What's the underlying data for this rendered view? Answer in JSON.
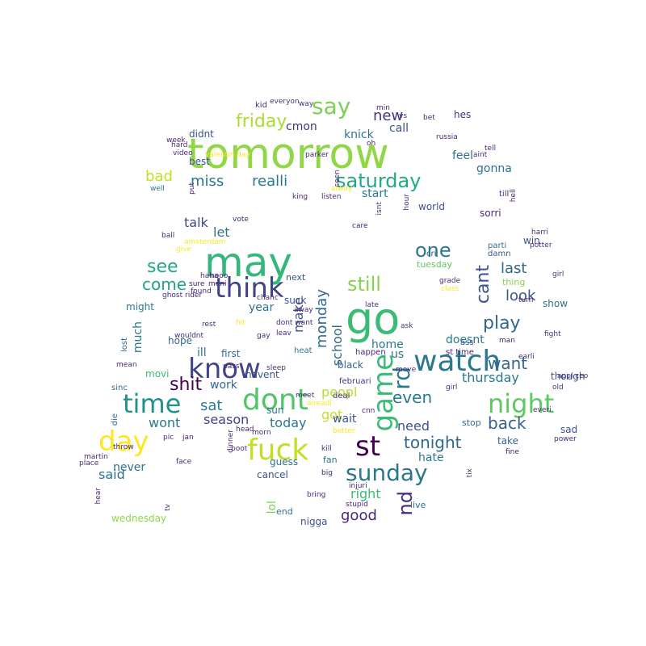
{
  "words": [
    {
      "text": "tomorrow",
      "color": "#8fd744"
    },
    {
      "text": "go",
      "color": "#3bbb75"
    },
    {
      "text": "may",
      "color": "#35b779"
    },
    {
      "text": "know",
      "color": "#414487"
    },
    {
      "text": "watch",
      "color": "#2a788e"
    },
    {
      "text": "dont",
      "color": "#52c569"
    },
    {
      "text": "think",
      "color": "#414487"
    },
    {
      "text": "fuck",
      "color": "#c2df23"
    },
    {
      "text": "st",
      "color": "#440154"
    },
    {
      "text": "night",
      "color": "#5ec962"
    },
    {
      "text": "game",
      "color": "#3bbb75"
    },
    {
      "text": "day",
      "color": "#fde725"
    },
    {
      "text": "time",
      "color": "#21918c"
    },
    {
      "text": "sunday",
      "color": "#2a788e"
    },
    {
      "text": "say",
      "color": "#7ad151"
    },
    {
      "text": "saturday",
      "color": "#22a884"
    },
    {
      "text": "friday",
      "color": "#addc30"
    },
    {
      "text": "play",
      "color": "#31688e"
    },
    {
      "text": "still",
      "color": "#86d549"
    },
    {
      "text": "cant",
      "color": "#3b528b"
    },
    {
      "text": "one",
      "color": "#2a788e"
    },
    {
      "text": "see",
      "color": "#22a884"
    },
    {
      "text": "come",
      "color": "#20a386"
    },
    {
      "text": "shit",
      "color": "#440154"
    },
    {
      "text": "rd",
      "color": "#2a788e"
    },
    {
      "text": "nd",
      "color": "#482878"
    },
    {
      "text": "tonight",
      "color": "#31688e"
    },
    {
      "text": "back",
      "color": "#355f8d"
    },
    {
      "text": "even",
      "color": "#2a788e"
    },
    {
      "text": "want",
      "color": "#31688e"
    },
    {
      "text": "monday",
      "color": "#31688e"
    },
    {
      "text": "school",
      "color": "#31688e"
    },
    {
      "text": "miss",
      "color": "#2a788e"
    },
    {
      "text": "realli",
      "color": "#2a788e"
    },
    {
      "text": "new",
      "color": "#46337e"
    },
    {
      "text": "bad",
      "color": "#c2df23"
    },
    {
      "text": "last",
      "color": "#31688e"
    },
    {
      "text": "look",
      "color": "#3b528b"
    },
    {
      "text": "sat",
      "color": "#26828e"
    },
    {
      "text": "got",
      "color": "#c2df23"
    },
    {
      "text": "peopl",
      "color": "#b5de2b"
    },
    {
      "text": "make",
      "color": "#3b528b"
    },
    {
      "text": "thursday",
      "color": "#2a788e"
    },
    {
      "text": "season",
      "color": "#414487"
    },
    {
      "text": "wont",
      "color": "#2a788e"
    },
    {
      "text": "today",
      "color": "#2a788e"
    },
    {
      "text": "need",
      "color": "#3b528b"
    },
    {
      "text": "hate",
      "color": "#2a788e"
    },
    {
      "text": "good",
      "color": "#482878"
    },
    {
      "text": "right",
      "color": "#3bbb75"
    },
    {
      "text": "said",
      "color": "#2c728e"
    },
    {
      "text": "never",
      "color": "#2c728e"
    },
    {
      "text": "talk",
      "color": "#414487"
    },
    {
      "text": "let",
      "color": "#2c728e"
    },
    {
      "text": "cmon",
      "color": "#46337e"
    },
    {
      "text": "call",
      "color": "#3b528b"
    },
    {
      "text": "feel",
      "color": "#2c728e"
    },
    {
      "text": "gonna",
      "color": "#2c728e"
    },
    {
      "text": "start",
      "color": "#2a788e"
    },
    {
      "text": "knick",
      "color": "#2c728e"
    },
    {
      "text": "home",
      "color": "#2a788e"
    },
    {
      "text": "doesnt",
      "color": "#2a788e"
    },
    {
      "text": "year",
      "color": "#2c728e"
    },
    {
      "text": "ill",
      "color": "#2a788e"
    },
    {
      "text": "work",
      "color": "#31688e"
    },
    {
      "text": "wait",
      "color": "#3b528b"
    },
    {
      "text": "us",
      "color": "#2c728e"
    },
    {
      "text": "lol",
      "color": "#7ad151"
    },
    {
      "text": "sun",
      "color": "#2c728e"
    },
    {
      "text": "cancel",
      "color": "#3b528b"
    },
    {
      "text": "nigga",
      "color": "#3b528b"
    },
    {
      "text": "much",
      "color": "#2a788e"
    },
    {
      "text": "wednesday",
      "color": "#8fd744"
    },
    {
      "text": "hes",
      "color": "#46337e"
    },
    {
      "text": "didnt",
      "color": "#3b528b"
    },
    {
      "text": "best",
      "color": "#3b528b"
    },
    {
      "text": "might",
      "color": "#2a788e"
    },
    {
      "text": "sorri",
      "color": "#482878"
    },
    {
      "text": "world",
      "color": "#3b528b"
    },
    {
      "text": "win",
      "color": "#3b528b"
    },
    {
      "text": "tuesday",
      "color": "#5ec962"
    },
    {
      "text": "first",
      "color": "#31688e"
    },
    {
      "text": "movi",
      "color": "#3bbb75"
    },
    {
      "text": "havent",
      "color": "#3b528b"
    },
    {
      "text": "black",
      "color": "#31688e"
    },
    {
      "text": "fan",
      "color": "#2c728e"
    },
    {
      "text": "take",
      "color": "#31688e"
    },
    {
      "text": "stop",
      "color": "#31688e"
    },
    {
      "text": "sad",
      "color": "#3b528b"
    },
    {
      "text": "thing",
      "color": "#86d549"
    },
    {
      "text": "show",
      "color": "#2c728e"
    },
    {
      "text": "though",
      "color": "#3b528b"
    },
    {
      "text": "live",
      "color": "#2c728e"
    },
    {
      "text": "end",
      "color": "#2c728e"
    },
    {
      "text": "hope",
      "color": "#31688e"
    },
    {
      "text": "next",
      "color": "#3b528b"
    },
    {
      "text": "suck",
      "color": "#3b528b"
    },
    {
      "text": "guess",
      "color": "#2c728e"
    },
    {
      "text": "die",
      "color": "#31688e"
    },
    {
      "text": "sinc",
      "color": "#31688e"
    },
    {
      "text": "lost",
      "color": "#31688e"
    },
    {
      "text": "ass",
      "color": "#3b528b"
    },
    {
      "text": "damn",
      "color": "#3b528b"
    },
    {
      "text": "parti",
      "color": "#2c728e"
    },
    {
      "text": "cri",
      "color": "#3b528b"
    },
    {
      "text": "kid",
      "color": "#46337e"
    },
    {
      "text": "st time",
      "color": "#482878"
    },
    {
      "text": "februari",
      "color": "#46337e"
    },
    {
      "text": "deal",
      "color": "#46337e"
    },
    {
      "text": "girl",
      "color": "#46337e"
    },
    {
      "text": "fight",
      "color": "#46337e"
    },
    {
      "text": "old",
      "color": "#46337e"
    },
    {
      "text": "appl ceo",
      "color": "#46337e"
    },
    {
      "text": "heat",
      "color": "#2a788e"
    },
    {
      "text": "kill",
      "color": "#46337e"
    },
    {
      "text": "happen",
      "color": "#482878"
    },
    {
      "text": "ask",
      "color": "#46337e"
    },
    {
      "text": "late",
      "color": "#46337e"
    },
    {
      "text": "move",
      "color": "#46337e"
    },
    {
      "text": "sleep",
      "color": "#46337e"
    },
    {
      "text": "meet",
      "color": "#46337e"
    },
    {
      "text": "injuri",
      "color": "#482878"
    },
    {
      "text": "stupid",
      "color": "#482878"
    },
    {
      "text": "bring",
      "color": "#482878"
    },
    {
      "text": "big",
      "color": "#482878"
    },
    {
      "text": "hear",
      "color": "#482878"
    },
    {
      "text": "place",
      "color": "#482878"
    },
    {
      "text": "martin",
      "color": "#482878"
    },
    {
      "text": "throw",
      "color": "#482878"
    },
    {
      "text": "face",
      "color": "#482878"
    },
    {
      "text": "tv",
      "color": "#482878"
    },
    {
      "text": "ghost rider",
      "color": "#482878"
    },
    {
      "text": "haha",
      "color": "#482878"
    },
    {
      "text": "nooo",
      "color": "#482878"
    },
    {
      "text": "sure",
      "color": "#482878"
    },
    {
      "text": "moni",
      "color": "#482878"
    },
    {
      "text": "found",
      "color": "#482878"
    },
    {
      "text": "vote",
      "color": "#482878"
    },
    {
      "text": "ball",
      "color": "#482878"
    },
    {
      "text": "give",
      "color": "#fde725"
    },
    {
      "text": "amsterdam",
      "color": "#fde725"
    },
    {
      "text": "wouldnt",
      "color": "#482878"
    },
    {
      "text": "chanc",
      "color": "#482878"
    },
    {
      "text": "dont want",
      "color": "#482878"
    },
    {
      "text": "away",
      "color": "#482878"
    },
    {
      "text": "leav",
      "color": "#482878"
    },
    {
      "text": "mean",
      "color": "#482878"
    },
    {
      "text": "pic",
      "color": "#482878"
    },
    {
      "text": "jan",
      "color": "#482878"
    },
    {
      "text": "man",
      "color": "#482878"
    },
    {
      "text": "grade",
      "color": "#482878"
    },
    {
      "text": "class",
      "color": "#fde725"
    },
    {
      "text": "turn",
      "color": "#482878"
    },
    {
      "text": "harri",
      "color": "#482878"
    },
    {
      "text": "potter",
      "color": "#482878"
    },
    {
      "text": "earli",
      "color": "#482878"
    },
    {
      "text": "everi",
      "color": "#482878"
    },
    {
      "text": "power",
      "color": "#482878"
    },
    {
      "text": "better",
      "color": "#fde725"
    },
    {
      "text": "everyon",
      "color": "#46337e"
    },
    {
      "text": "way",
      "color": "#46337e"
    },
    {
      "text": "week",
      "color": "#482878"
    },
    {
      "text": "hard",
      "color": "#482878"
    },
    {
      "text": "valentin day",
      "color": "#fde725"
    },
    {
      "text": "min",
      "color": "#482878"
    },
    {
      "text": "vs",
      "color": "#482878"
    },
    {
      "text": "bet",
      "color": "#482878"
    },
    {
      "text": "russia",
      "color": "#482878"
    },
    {
      "text": "tell",
      "color": "#482878"
    },
    {
      "text": "aint",
      "color": "#482878"
    },
    {
      "text": "oh",
      "color": "#482878"
    },
    {
      "text": "seen",
      "color": "#482878"
    },
    {
      "text": "alway",
      "color": "#fde725"
    },
    {
      "text": "king",
      "color": "#482878"
    },
    {
      "text": "listen",
      "color": "#482878"
    },
    {
      "text": "isnt",
      "color": "#482878"
    },
    {
      "text": "hour",
      "color": "#482878"
    },
    {
      "text": "till",
      "color": "#482878"
    },
    {
      "text": "hell",
      "color": "#482878"
    },
    {
      "text": "well",
      "color": "#2a788e"
    },
    {
      "text": "video",
      "color": "#482878"
    },
    {
      "text": "put",
      "color": "#482878"
    },
    {
      "text": "parker",
      "color": "#482878"
    },
    {
      "text": "boot",
      "color": "#482878"
    },
    {
      "text": "head",
      "color": "#482878"
    },
    {
      "text": "morn",
      "color": "#482878"
    },
    {
      "text": "cnn",
      "color": "#482878"
    },
    {
      "text": "gay",
      "color": "#482878"
    },
    {
      "text": "dinner",
      "color": "#482878"
    },
    {
      "text": "alreadi",
      "color": "#fde725"
    },
    {
      "text": "fine",
      "color": "#482878"
    },
    {
      "text": "tix",
      "color": "#482878"
    },
    {
      "text": "pass",
      "color": "#482878"
    },
    {
      "text": "girl",
      "color": "#482878"
    },
    {
      "text": "hit",
      "color": "#fde725"
    },
    {
      "text": "rest",
      "color": "#482878"
    },
    {
      "text": "care",
      "color": "#482878"
    },
    {
      "text": "ss",
      "color": "#fde725"
    },
    {
      "text": "got",
      "color": "#fde725"
    },
    {
      "text": "sound",
      "color": "#fde725"
    },
    {
      "text": "pull",
      "color": "#482878"
    }
  ]
}
